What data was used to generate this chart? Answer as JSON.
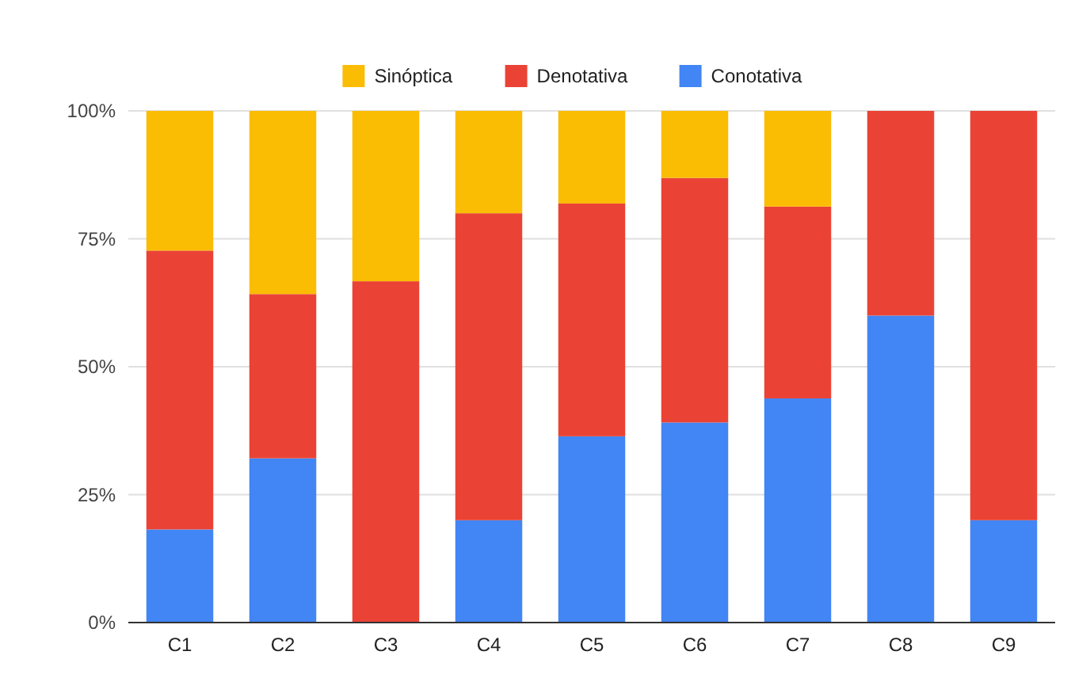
{
  "chart_data": {
    "type": "bar",
    "stacked": true,
    "categories": [
      "C1",
      "C2",
      "C3",
      "C4",
      "C5",
      "C6",
      "C7",
      "C8",
      "C9"
    ],
    "series": [
      {
        "name": "Conotativa",
        "color": "#4285f4",
        "values": [
          18.2,
          32.1,
          0,
          20,
          36.4,
          39.1,
          43.8,
          60,
          20
        ]
      },
      {
        "name": "Denotativa",
        "color": "#ea4335",
        "values": [
          54.5,
          32.1,
          66.7,
          60,
          45.5,
          47.8,
          37.5,
          40,
          80
        ]
      },
      {
        "name": "Sinóptica",
        "color": "#fbbc04",
        "values": [
          27.3,
          35.8,
          33.3,
          20,
          18.1,
          13.1,
          18.7,
          0,
          0
        ]
      }
    ],
    "ylim": [
      0,
      100
    ],
    "yticks": [
      {
        "value": 0,
        "label": "0%"
      },
      {
        "value": 25,
        "label": "25%"
      },
      {
        "value": 50,
        "label": "50%"
      },
      {
        "value": 75,
        "label": "75%"
      },
      {
        "value": 100,
        "label": "100%"
      }
    ],
    "grid": "y",
    "legend": "top"
  }
}
